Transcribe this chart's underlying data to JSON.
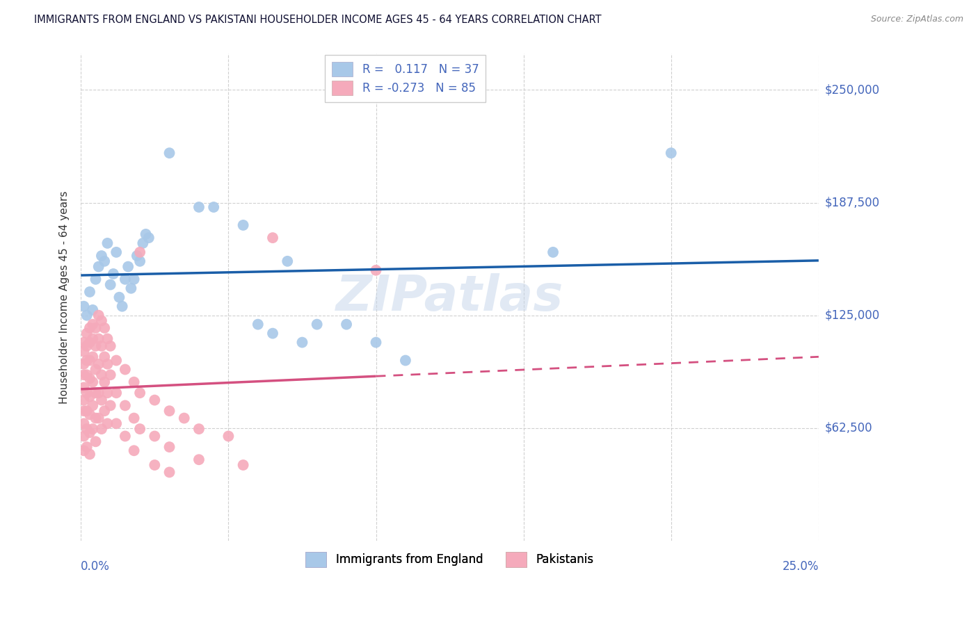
{
  "title": "IMMIGRANTS FROM ENGLAND VS PAKISTANI HOUSEHOLDER INCOME AGES 45 - 64 YEARS CORRELATION CHART",
  "source": "Source: ZipAtlas.com",
  "ylabel": "Householder Income Ages 45 - 64 years",
  "ytick_values": [
    62500,
    125000,
    187500,
    250000
  ],
  "ytick_labels": [
    "$62,500",
    "$125,000",
    "$187,500",
    "$250,000"
  ],
  "ylim": [
    0,
    270000
  ],
  "xlim": [
    0.0,
    0.25
  ],
  "england_color": "#a8c8e8",
  "pakistan_color": "#f5aabb",
  "england_line_color": "#1a5ea8",
  "pakistan_line_color": "#d45080",
  "watermark": "ZIPatlas",
  "england_scatter": [
    [
      0.001,
      130000
    ],
    [
      0.002,
      125000
    ],
    [
      0.003,
      138000
    ],
    [
      0.004,
      128000
    ],
    [
      0.005,
      145000
    ],
    [
      0.006,
      152000
    ],
    [
      0.007,
      158000
    ],
    [
      0.008,
      155000
    ],
    [
      0.009,
      165000
    ],
    [
      0.01,
      142000
    ],
    [
      0.011,
      148000
    ],
    [
      0.012,
      160000
    ],
    [
      0.013,
      135000
    ],
    [
      0.014,
      130000
    ],
    [
      0.015,
      145000
    ],
    [
      0.016,
      152000
    ],
    [
      0.017,
      140000
    ],
    [
      0.018,
      145000
    ],
    [
      0.019,
      158000
    ],
    [
      0.02,
      155000
    ],
    [
      0.021,
      165000
    ],
    [
      0.022,
      170000
    ],
    [
      0.023,
      168000
    ],
    [
      0.03,
      215000
    ],
    [
      0.04,
      185000
    ],
    [
      0.045,
      185000
    ],
    [
      0.055,
      175000
    ],
    [
      0.06,
      120000
    ],
    [
      0.065,
      115000
    ],
    [
      0.07,
      155000
    ],
    [
      0.075,
      110000
    ],
    [
      0.08,
      120000
    ],
    [
      0.09,
      120000
    ],
    [
      0.1,
      110000
    ],
    [
      0.11,
      100000
    ],
    [
      0.16,
      160000
    ],
    [
      0.2,
      215000
    ]
  ],
  "pakistan_scatter": [
    [
      0.001,
      110000
    ],
    [
      0.001,
      105000
    ],
    [
      0.001,
      98000
    ],
    [
      0.001,
      92000
    ],
    [
      0.001,
      85000
    ],
    [
      0.001,
      78000
    ],
    [
      0.001,
      72000
    ],
    [
      0.001,
      65000
    ],
    [
      0.001,
      58000
    ],
    [
      0.001,
      50000
    ],
    [
      0.002,
      115000
    ],
    [
      0.002,
      108000
    ],
    [
      0.002,
      100000
    ],
    [
      0.002,
      92000
    ],
    [
      0.002,
      82000
    ],
    [
      0.002,
      72000
    ],
    [
      0.002,
      62000
    ],
    [
      0.002,
      52000
    ],
    [
      0.003,
      118000
    ],
    [
      0.003,
      110000
    ],
    [
      0.003,
      100000
    ],
    [
      0.003,
      90000
    ],
    [
      0.003,
      80000
    ],
    [
      0.003,
      70000
    ],
    [
      0.003,
      60000
    ],
    [
      0.003,
      48000
    ],
    [
      0.004,
      120000
    ],
    [
      0.004,
      112000
    ],
    [
      0.004,
      102000
    ],
    [
      0.004,
      88000
    ],
    [
      0.004,
      75000
    ],
    [
      0.004,
      62000
    ],
    [
      0.005,
      118000
    ],
    [
      0.005,
      108000
    ],
    [
      0.005,
      95000
    ],
    [
      0.005,
      82000
    ],
    [
      0.005,
      68000
    ],
    [
      0.005,
      55000
    ],
    [
      0.006,
      125000
    ],
    [
      0.006,
      112000
    ],
    [
      0.006,
      98000
    ],
    [
      0.006,
      82000
    ],
    [
      0.006,
      68000
    ],
    [
      0.007,
      122000
    ],
    [
      0.007,
      108000
    ],
    [
      0.007,
      92000
    ],
    [
      0.007,
      78000
    ],
    [
      0.007,
      62000
    ],
    [
      0.008,
      118000
    ],
    [
      0.008,
      102000
    ],
    [
      0.008,
      88000
    ],
    [
      0.008,
      72000
    ],
    [
      0.009,
      112000
    ],
    [
      0.009,
      98000
    ],
    [
      0.009,
      82000
    ],
    [
      0.009,
      65000
    ],
    [
      0.01,
      108000
    ],
    [
      0.01,
      92000
    ],
    [
      0.01,
      75000
    ],
    [
      0.012,
      100000
    ],
    [
      0.012,
      82000
    ],
    [
      0.012,
      65000
    ],
    [
      0.015,
      95000
    ],
    [
      0.015,
      75000
    ],
    [
      0.015,
      58000
    ],
    [
      0.018,
      88000
    ],
    [
      0.018,
      68000
    ],
    [
      0.018,
      50000
    ],
    [
      0.02,
      160000
    ],
    [
      0.02,
      82000
    ],
    [
      0.02,
      62000
    ],
    [
      0.025,
      78000
    ],
    [
      0.025,
      58000
    ],
    [
      0.025,
      42000
    ],
    [
      0.03,
      72000
    ],
    [
      0.03,
      52000
    ],
    [
      0.03,
      38000
    ],
    [
      0.035,
      68000
    ],
    [
      0.04,
      62000
    ],
    [
      0.04,
      45000
    ],
    [
      0.05,
      58000
    ],
    [
      0.055,
      42000
    ],
    [
      0.065,
      168000
    ],
    [
      0.1,
      150000
    ]
  ]
}
